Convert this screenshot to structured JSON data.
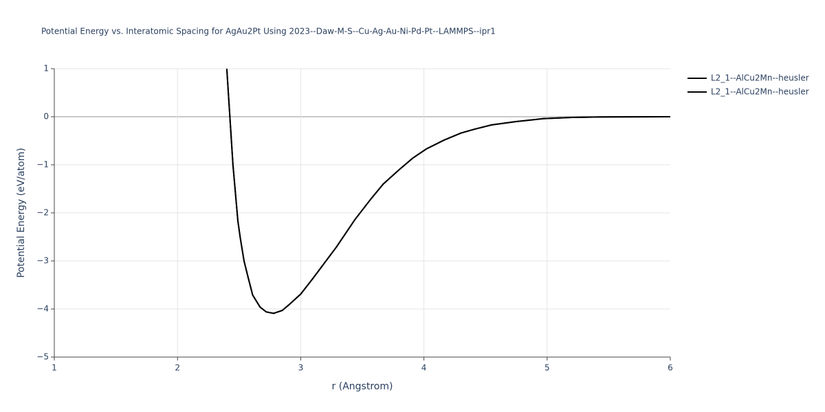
{
  "chart_data": {
    "type": "line",
    "title": "Potential Energy vs. Interatomic Spacing for AgAu2Pt Using 2023--Daw-M-S--Cu-Ag-Au-Ni-Pd-Pt--LAMMPS--ipr1",
    "x_label": "r (Angstrom)",
    "y_label": "Potential Energy (eV/atom)",
    "xlim": [
      1,
      6
    ],
    "ylim": [
      -5,
      1
    ],
    "xticks": [
      1,
      2,
      3,
      4,
      5,
      6
    ],
    "yticks": [
      {
        "value": -5,
        "label": "−5"
      },
      {
        "value": -4,
        "label": "−4"
      },
      {
        "value": -3,
        "label": "−3"
      },
      {
        "value": -2,
        "label": "−2"
      },
      {
        "value": -1,
        "label": "−1"
      },
      0,
      1
    ],
    "grid": true,
    "legend": "top-right",
    "x": [
      2.4,
      2.45,
      2.49,
      2.51,
      2.54,
      2.57,
      2.61,
      2.67,
      2.72,
      2.78,
      2.85,
      2.91,
      3.0,
      3.1,
      3.29,
      3.44,
      3.57,
      3.67,
      3.8,
      3.91,
      4.02,
      4.16,
      4.3,
      4.41,
      4.55,
      4.75,
      4.97,
      5.2,
      5.42,
      6.0
    ],
    "series": [
      {
        "name": "L2_1--AlCu2Mn--heusler",
        "color": "#000000",
        "values": [
          1,
          -1,
          -2.17,
          -2.53,
          -3.0,
          -3.31,
          -3.71,
          -3.96,
          -4.06,
          -4.09,
          -4.03,
          -3.9,
          -3.69,
          -3.36,
          -2.71,
          -2.14,
          -1.71,
          -1.4,
          -1.1,
          -0.86,
          -0.67,
          -0.49,
          -0.34,
          -0.26,
          -0.17,
          -0.1,
          -0.04,
          -0.015,
          -0.005,
          0
        ]
      },
      {
        "name": "L2_1--AlCu2Mn--heusler",
        "color": "#000000",
        "values": [
          1,
          -1,
          -2.17,
          -2.53,
          -3.0,
          -3.31,
          -3.71,
          -3.96,
          -4.06,
          -4.09,
          -4.03,
          -3.9,
          -3.69,
          -3.36,
          -2.71,
          -2.14,
          -1.71,
          -1.4,
          -1.1,
          -0.86,
          -0.67,
          -0.49,
          -0.34,
          -0.26,
          -0.17,
          -0.1,
          -0.04,
          -0.015,
          -0.005,
          0
        ]
      }
    ]
  }
}
